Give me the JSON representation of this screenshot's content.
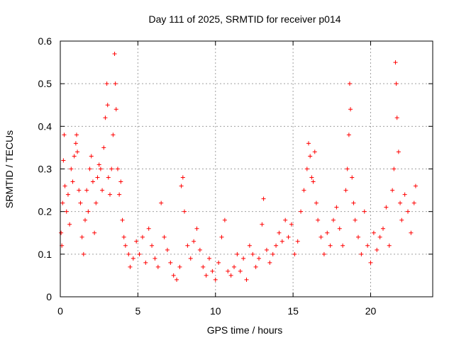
{
  "chart_data": {
    "type": "scatter",
    "title": "Day 111 of 2025, SRMTID for receiver p014",
    "xlabel": "GPS time / hours",
    "ylabel": "SRMTID / TECUs",
    "xlim": [
      0,
      24
    ],
    "ylim": [
      0,
      0.6
    ],
    "xticks": [
      0,
      5,
      10,
      15,
      20
    ],
    "yticks": [
      0,
      0.1,
      0.2,
      0.3,
      0.4,
      0.5,
      0.6
    ],
    "xtick_labels": [
      "0",
      "5",
      "10",
      "15",
      "20"
    ],
    "ytick_labels": [
      "0",
      "0.1",
      "0.2",
      "0.3",
      "0.4",
      "0.5",
      "0.6"
    ],
    "grid": true,
    "marker": "plus",
    "marker_color": "#ff0000",
    "series": [
      {
        "name": "SRMTID",
        "points": [
          [
            0.05,
            0.15
          ],
          [
            0.1,
            0.12
          ],
          [
            0.15,
            0.22
          ],
          [
            0.2,
            0.32
          ],
          [
            0.25,
            0.38
          ],
          [
            0.3,
            0.26
          ],
          [
            0.4,
            0.2
          ],
          [
            0.5,
            0.24
          ],
          [
            0.6,
            0.17
          ],
          [
            0.7,
            0.3
          ],
          [
            0.8,
            0.27
          ],
          [
            0.9,
            0.33
          ],
          [
            1.0,
            0.36
          ],
          [
            1.05,
            0.38
          ],
          [
            1.1,
            0.34
          ],
          [
            1.2,
            0.25
          ],
          [
            1.3,
            0.22
          ],
          [
            1.4,
            0.14
          ],
          [
            1.5,
            0.1
          ],
          [
            1.6,
            0.18
          ],
          [
            1.7,
            0.25
          ],
          [
            1.8,
            0.2
          ],
          [
            1.9,
            0.3
          ],
          [
            2.0,
            0.33
          ],
          [
            2.1,
            0.27
          ],
          [
            2.2,
            0.15
          ],
          [
            2.3,
            0.22
          ],
          [
            2.4,
            0.28
          ],
          [
            2.5,
            0.31
          ],
          [
            2.6,
            0.3
          ],
          [
            2.7,
            0.25
          ],
          [
            2.8,
            0.35
          ],
          [
            2.9,
            0.42
          ],
          [
            3.0,
            0.5
          ],
          [
            3.05,
            0.45
          ],
          [
            3.1,
            0.28
          ],
          [
            3.2,
            0.24
          ],
          [
            3.3,
            0.3
          ],
          [
            3.4,
            0.38
          ],
          [
            3.5,
            0.57
          ],
          [
            3.55,
            0.5
          ],
          [
            3.6,
            0.44
          ],
          [
            3.7,
            0.3
          ],
          [
            3.8,
            0.24
          ],
          [
            3.9,
            0.27
          ],
          [
            4.0,
            0.18
          ],
          [
            4.1,
            0.14
          ],
          [
            4.2,
            0.12
          ],
          [
            4.4,
            0.1
          ],
          [
            4.5,
            0.07
          ],
          [
            4.7,
            0.09
          ],
          [
            4.9,
            0.13
          ],
          [
            5.1,
            0.1
          ],
          [
            5.3,
            0.14
          ],
          [
            5.5,
            0.08
          ],
          [
            5.7,
            0.16
          ],
          [
            5.9,
            0.12
          ],
          [
            6.1,
            0.09
          ],
          [
            6.3,
            0.07
          ],
          [
            6.5,
            0.22
          ],
          [
            6.7,
            0.14
          ],
          [
            6.9,
            0.11
          ],
          [
            7.1,
            0.08
          ],
          [
            7.3,
            0.05
          ],
          [
            7.5,
            0.04
          ],
          [
            7.7,
            0.07
          ],
          [
            7.8,
            0.26
          ],
          [
            7.9,
            0.28
          ],
          [
            8.0,
            0.2
          ],
          [
            8.2,
            0.12
          ],
          [
            8.4,
            0.09
          ],
          [
            8.6,
            0.13
          ],
          [
            8.8,
            0.16
          ],
          [
            9.0,
            0.11
          ],
          [
            9.2,
            0.07
          ],
          [
            9.4,
            0.05
          ],
          [
            9.6,
            0.09
          ],
          [
            9.8,
            0.06
          ],
          [
            10.0,
            0.04
          ],
          [
            10.2,
            0.08
          ],
          [
            10.4,
            0.14
          ],
          [
            10.6,
            0.18
          ],
          [
            10.8,
            0.06
          ],
          [
            11.0,
            0.05
          ],
          [
            11.2,
            0.07
          ],
          [
            11.4,
            0.1
          ],
          [
            11.6,
            0.06
          ],
          [
            11.8,
            0.09
          ],
          [
            12.0,
            0.04
          ],
          [
            12.2,
            0.12
          ],
          [
            12.4,
            0.1
          ],
          [
            12.6,
            0.07
          ],
          [
            12.8,
            0.09
          ],
          [
            13.0,
            0.17
          ],
          [
            13.1,
            0.23
          ],
          [
            13.3,
            0.11
          ],
          [
            13.5,
            0.08
          ],
          [
            13.7,
            0.1
          ],
          [
            13.9,
            0.12
          ],
          [
            14.1,
            0.15
          ],
          [
            14.3,
            0.13
          ],
          [
            14.5,
            0.18
          ],
          [
            14.7,
            0.14
          ],
          [
            14.9,
            0.17
          ],
          [
            15.1,
            0.1
          ],
          [
            15.3,
            0.13
          ],
          [
            15.5,
            0.2
          ],
          [
            15.7,
            0.25
          ],
          [
            15.9,
            0.3
          ],
          [
            16.0,
            0.36
          ],
          [
            16.1,
            0.33
          ],
          [
            16.2,
            0.28
          ],
          [
            16.3,
            0.27
          ],
          [
            16.4,
            0.34
          ],
          [
            16.5,
            0.22
          ],
          [
            16.6,
            0.18
          ],
          [
            16.8,
            0.14
          ],
          [
            17.0,
            0.1
          ],
          [
            17.2,
            0.15
          ],
          [
            17.4,
            0.12
          ],
          [
            17.6,
            0.18
          ],
          [
            17.8,
            0.21
          ],
          [
            18.0,
            0.16
          ],
          [
            18.2,
            0.12
          ],
          [
            18.4,
            0.25
          ],
          [
            18.5,
            0.3
          ],
          [
            18.6,
            0.38
          ],
          [
            18.65,
            0.5
          ],
          [
            18.7,
            0.44
          ],
          [
            18.8,
            0.28
          ],
          [
            18.9,
            0.22
          ],
          [
            19.0,
            0.18
          ],
          [
            19.2,
            0.14
          ],
          [
            19.4,
            0.1
          ],
          [
            19.6,
            0.2
          ],
          [
            19.8,
            0.12
          ],
          [
            20.0,
            0.08
          ],
          [
            20.2,
            0.15
          ],
          [
            20.4,
            0.11
          ],
          [
            20.6,
            0.14
          ],
          [
            20.8,
            0.16
          ],
          [
            21.0,
            0.21
          ],
          [
            21.2,
            0.12
          ],
          [
            21.4,
            0.25
          ],
          [
            21.5,
            0.3
          ],
          [
            21.6,
            0.55
          ],
          [
            21.65,
            0.5
          ],
          [
            21.7,
            0.42
          ],
          [
            21.8,
            0.34
          ],
          [
            21.9,
            0.22
          ],
          [
            22.0,
            0.18
          ],
          [
            22.2,
            0.24
          ],
          [
            22.4,
            0.2
          ],
          [
            22.6,
            0.15
          ],
          [
            22.8,
            0.22
          ],
          [
            22.9,
            0.26
          ]
        ]
      }
    ]
  }
}
